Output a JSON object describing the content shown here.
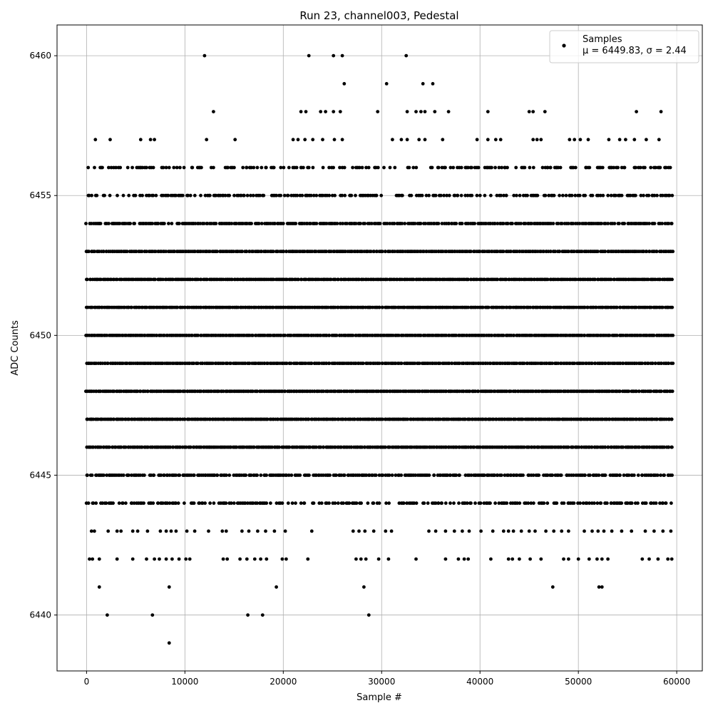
{
  "chart_data": {
    "type": "scatter",
    "title": "Run 23, channel003, Pedestal",
    "xlabel": "Sample #",
    "ylabel": "ADC Counts",
    "xlim": [
      -3000,
      62600
    ],
    "ylim": [
      6438,
      6461.1
    ],
    "x_ticks": [
      0,
      10000,
      20000,
      30000,
      40000,
      50000,
      60000
    ],
    "x_tick_labels": [
      "0",
      "10000",
      "20000",
      "30000",
      "40000",
      "50000",
      "60000"
    ],
    "y_ticks": [
      6440,
      6445,
      6450,
      6455,
      6460
    ],
    "y_tick_labels": [
      "6440",
      "6445",
      "6450",
      "6455",
      "6460"
    ],
    "grid": true,
    "legend": {
      "placement": "top-right",
      "entries": [
        {
          "label": "Samples",
          "sublabel": "μ = 6449.83, σ = 2.44",
          "marker": "dot",
          "color": "#000000"
        }
      ]
    },
    "series": [
      {
        "name": "Samples",
        "color": "#000000",
        "marker": "dot",
        "x_range": [
          0,
          59600
        ],
        "bands": [
          {
            "y": 6456,
            "density": 0.45
          },
          {
            "y": 6455,
            "density": 0.55
          },
          {
            "y": 6454,
            "density": 0.85
          },
          {
            "y": 6453,
            "density": 1.0
          },
          {
            "y": 6452,
            "density": 1.0
          },
          {
            "y": 6451,
            "density": 1.0
          },
          {
            "y": 6450,
            "density": 1.0
          },
          {
            "y": 6449,
            "density": 1.0
          },
          {
            "y": 6448,
            "density": 1.0
          },
          {
            "y": 6447,
            "density": 1.0
          },
          {
            "y": 6446,
            "density": 1.0
          },
          {
            "y": 6445,
            "density": 0.8
          },
          {
            "y": 6444,
            "density": 0.6
          }
        ],
        "sparse_points": [
          [
            12000,
            6460
          ],
          [
            22600,
            6460
          ],
          [
            25100,
            6460
          ],
          [
            26000,
            6460
          ],
          [
            32500,
            6460
          ],
          [
            26200,
            6459
          ],
          [
            30500,
            6459
          ],
          [
            34200,
            6459
          ],
          [
            35200,
            6459
          ],
          [
            12900,
            6458
          ],
          [
            21800,
            6458
          ],
          [
            22300,
            6458
          ],
          [
            23800,
            6458
          ],
          [
            24300,
            6458
          ],
          [
            25100,
            6458
          ],
          [
            25800,
            6458
          ],
          [
            29600,
            6458
          ],
          [
            32600,
            6458
          ],
          [
            33500,
            6458
          ],
          [
            34000,
            6458
          ],
          [
            34400,
            6458
          ],
          [
            35400,
            6458
          ],
          [
            36800,
            6458
          ],
          [
            40800,
            6458
          ],
          [
            45000,
            6458
          ],
          [
            45400,
            6458
          ],
          [
            46600,
            6458
          ],
          [
            55900,
            6458
          ],
          [
            58400,
            6458
          ],
          [
            900,
            6457
          ],
          [
            2400,
            6457
          ],
          [
            5500,
            6457
          ],
          [
            6500,
            6457
          ],
          [
            6900,
            6457
          ],
          [
            12200,
            6457
          ],
          [
            15100,
            6457
          ],
          [
            21000,
            6457
          ],
          [
            21500,
            6457
          ],
          [
            22200,
            6457
          ],
          [
            23000,
            6457
          ],
          [
            24000,
            6457
          ],
          [
            25200,
            6457
          ],
          [
            26000,
            6457
          ],
          [
            31100,
            6457
          ],
          [
            32000,
            6457
          ],
          [
            32600,
            6457
          ],
          [
            33800,
            6457
          ],
          [
            34400,
            6457
          ],
          [
            36200,
            6457
          ],
          [
            39700,
            6457
          ],
          [
            40800,
            6457
          ],
          [
            41600,
            6457
          ],
          [
            42100,
            6457
          ],
          [
            45400,
            6457
          ],
          [
            45800,
            6457
          ],
          [
            46200,
            6457
          ],
          [
            49100,
            6457
          ],
          [
            49600,
            6457
          ],
          [
            50200,
            6457
          ],
          [
            51000,
            6457
          ],
          [
            53100,
            6457
          ],
          [
            54200,
            6457
          ],
          [
            54800,
            6457
          ],
          [
            55700,
            6457
          ],
          [
            56900,
            6457
          ],
          [
            58200,
            6457
          ],
          [
            500,
            6443
          ],
          [
            800,
            6443
          ],
          [
            2200,
            6443
          ],
          [
            3100,
            6443
          ],
          [
            3500,
            6443
          ],
          [
            4700,
            6443
          ],
          [
            5200,
            6443
          ],
          [
            6200,
            6443
          ],
          [
            7500,
            6443
          ],
          [
            8100,
            6443
          ],
          [
            8600,
            6443
          ],
          [
            9100,
            6443
          ],
          [
            10200,
            6443
          ],
          [
            11000,
            6443
          ],
          [
            12400,
            6443
          ],
          [
            13800,
            6443
          ],
          [
            14200,
            6443
          ],
          [
            15800,
            6443
          ],
          [
            16500,
            6443
          ],
          [
            17400,
            6443
          ],
          [
            18200,
            6443
          ],
          [
            19100,
            6443
          ],
          [
            20200,
            6443
          ],
          [
            22900,
            6443
          ],
          [
            27100,
            6443
          ],
          [
            27700,
            6443
          ],
          [
            28300,
            6443
          ],
          [
            29200,
            6443
          ],
          [
            30400,
            6443
          ],
          [
            31000,
            6443
          ],
          [
            34800,
            6443
          ],
          [
            35500,
            6443
          ],
          [
            36500,
            6443
          ],
          [
            37400,
            6443
          ],
          [
            38200,
            6443
          ],
          [
            38900,
            6443
          ],
          [
            40100,
            6443
          ],
          [
            41300,
            6443
          ],
          [
            42400,
            6443
          ],
          [
            42900,
            6443
          ],
          [
            43400,
            6443
          ],
          [
            44200,
            6443
          ],
          [
            45000,
            6443
          ],
          [
            45600,
            6443
          ],
          [
            46700,
            6443
          ],
          [
            47500,
            6443
          ],
          [
            48300,
            6443
          ],
          [
            49000,
            6443
          ],
          [
            50600,
            6443
          ],
          [
            51400,
            6443
          ],
          [
            52000,
            6443
          ],
          [
            52600,
            6443
          ],
          [
            53400,
            6443
          ],
          [
            54400,
            6443
          ],
          [
            55400,
            6443
          ],
          [
            56800,
            6443
          ],
          [
            57700,
            6443
          ],
          [
            58600,
            6443
          ],
          [
            59400,
            6443
          ],
          [
            300,
            6442
          ],
          [
            600,
            6442
          ],
          [
            1300,
            6442
          ],
          [
            3100,
            6442
          ],
          [
            4700,
            6442
          ],
          [
            6100,
            6442
          ],
          [
            6900,
            6442
          ],
          [
            7400,
            6442
          ],
          [
            8100,
            6442
          ],
          [
            8700,
            6442
          ],
          [
            9400,
            6442
          ],
          [
            10100,
            6442
          ],
          [
            10500,
            6442
          ],
          [
            13900,
            6442
          ],
          [
            14300,
            6442
          ],
          [
            15600,
            6442
          ],
          [
            16300,
            6442
          ],
          [
            17100,
            6442
          ],
          [
            17700,
            6442
          ],
          [
            18300,
            6442
          ],
          [
            19900,
            6442
          ],
          [
            20300,
            6442
          ],
          [
            22500,
            6442
          ],
          [
            27400,
            6442
          ],
          [
            27900,
            6442
          ],
          [
            28400,
            6442
          ],
          [
            29700,
            6442
          ],
          [
            30700,
            6442
          ],
          [
            33500,
            6442
          ],
          [
            36500,
            6442
          ],
          [
            37800,
            6442
          ],
          [
            38400,
            6442
          ],
          [
            38800,
            6442
          ],
          [
            41100,
            6442
          ],
          [
            42900,
            6442
          ],
          [
            43300,
            6442
          ],
          [
            44000,
            6442
          ],
          [
            45100,
            6442
          ],
          [
            46200,
            6442
          ],
          [
            48500,
            6442
          ],
          [
            49000,
            6442
          ],
          [
            50000,
            6442
          ],
          [
            51100,
            6442
          ],
          [
            51900,
            6442
          ],
          [
            52400,
            6442
          ],
          [
            53000,
            6442
          ],
          [
            56500,
            6442
          ],
          [
            57200,
            6442
          ],
          [
            58100,
            6442
          ],
          [
            59100,
            6442
          ],
          [
            59500,
            6442
          ],
          [
            1300,
            6441
          ],
          [
            8400,
            6441
          ],
          [
            19300,
            6441
          ],
          [
            28200,
            6441
          ],
          [
            47400,
            6441
          ],
          [
            52100,
            6441
          ],
          [
            52400,
            6441
          ],
          [
            2100,
            6440
          ],
          [
            6700,
            6440
          ],
          [
            16400,
            6440
          ],
          [
            17900,
            6440
          ],
          [
            28700,
            6440
          ],
          [
            8400,
            6439
          ]
        ]
      }
    ]
  }
}
